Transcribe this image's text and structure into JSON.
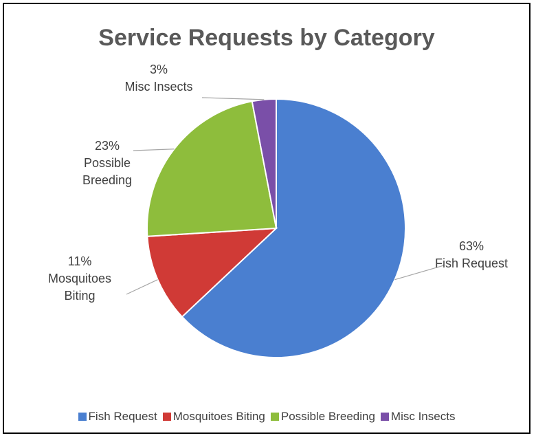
{
  "chart_data": {
    "type": "pie",
    "title": "Service Requests by Category",
    "slices": [
      {
        "name": "Fish Request",
        "value": 63,
        "percent_label": "63%",
        "label_lines": [
          "Fish Request"
        ],
        "color": "#4a7fd0"
      },
      {
        "name": "Mosquitoes Biting",
        "value": 11,
        "percent_label": "11%",
        "label_lines": [
          "Mosquitoes",
          "Biting"
        ],
        "color": "#d03a36"
      },
      {
        "name": "Possible Breeding",
        "value": 23,
        "percent_label": "23%",
        "label_lines": [
          "Possible",
          "Breeding"
        ],
        "color": "#8ebd3c"
      },
      {
        "name": "Misc Insects",
        "value": 3,
        "percent_label": "3%",
        "label_lines": [
          "Misc Insects"
        ],
        "color": "#7a4fa8"
      }
    ],
    "legend_position": "bottom",
    "start_angle_deg": 0,
    "direction": "clockwise"
  }
}
